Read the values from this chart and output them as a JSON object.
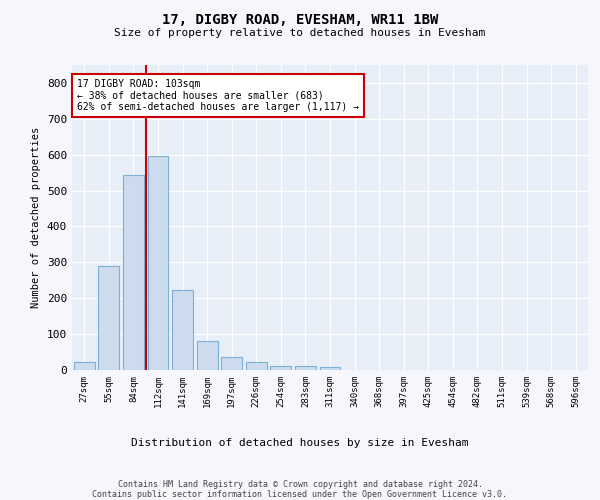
{
  "title": "17, DIGBY ROAD, EVESHAM, WR11 1BW",
  "subtitle": "Size of property relative to detached houses in Evesham",
  "xlabel": "Distribution of detached houses by size in Evesham",
  "ylabel": "Number of detached properties",
  "bar_color": "#ccdcee",
  "bar_edge_color": "#7bafd4",
  "background_color": "#e8eef8",
  "grid_color": "#ffffff",
  "bin_labels": [
    "27sqm",
    "55sqm",
    "84sqm",
    "112sqm",
    "141sqm",
    "169sqm",
    "197sqm",
    "226sqm",
    "254sqm",
    "283sqm",
    "311sqm",
    "340sqm",
    "368sqm",
    "397sqm",
    "425sqm",
    "454sqm",
    "482sqm",
    "511sqm",
    "539sqm",
    "568sqm",
    "596sqm"
  ],
  "bar_values": [
    22,
    290,
    543,
    597,
    222,
    80,
    35,
    22,
    12,
    10,
    7,
    0,
    0,
    0,
    0,
    0,
    0,
    0,
    0,
    0,
    0
  ],
  "ylim": [
    0,
    850
  ],
  "yticks": [
    0,
    100,
    200,
    300,
    400,
    500,
    600,
    700,
    800
  ],
  "vline_x": 2.5,
  "annotation_text": "17 DIGBY ROAD: 103sqm\n← 38% of detached houses are smaller (683)\n62% of semi-detached houses are larger (1,117) →",
  "annotation_box_color": "#ffffff",
  "annotation_box_edge_color": "#cc0000",
  "vline_color": "#cc0000",
  "footnote": "Contains HM Land Registry data © Crown copyright and database right 2024.\nContains public sector information licensed under the Open Government Licence v3.0.",
  "fig_bg_color": "#f5f7fc"
}
